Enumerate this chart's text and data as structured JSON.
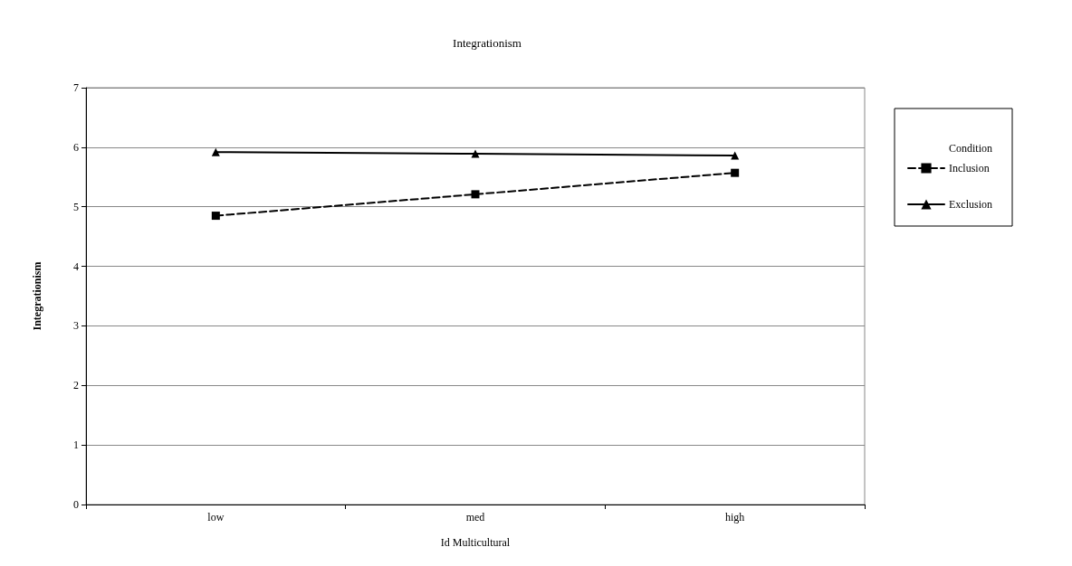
{
  "chart_data": {
    "type": "line",
    "title": "Integrationism",
    "xlabel": "Id Multicultural",
    "ylabel": "Integrationism",
    "legend_title": "Condition",
    "categories": [
      "low",
      "med",
      "high"
    ],
    "series": [
      {
        "name": "Inclusion",
        "color": "#000000",
        "values": [
          4.85,
          5.21,
          5.57
        ],
        "marker": "square",
        "line_style": "dashed"
      },
      {
        "name": "Exclusion",
        "color": "#000000",
        "values": [
          5.92,
          5.89,
          5.86
        ],
        "marker": "triangle",
        "line_style": "solid"
      }
    ],
    "ylim": [
      0,
      7
    ],
    "yticks": [
      0,
      1,
      2,
      3,
      4,
      5,
      6,
      7
    ],
    "grid": "y",
    "legend": "right"
  }
}
